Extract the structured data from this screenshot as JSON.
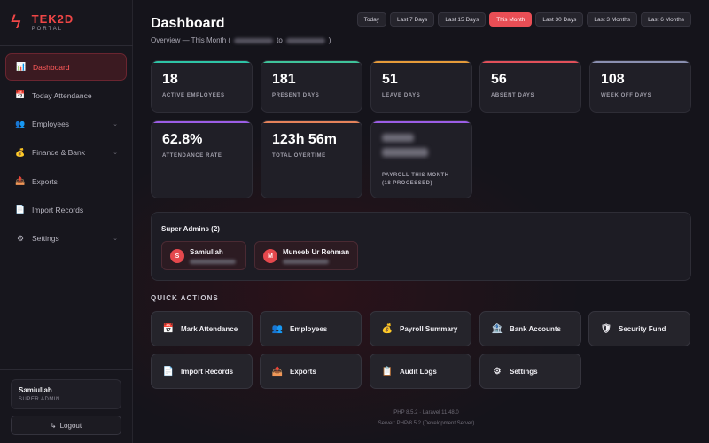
{
  "brand": {
    "name": "TEK2D",
    "sub": "PORTAL"
  },
  "sidebar": {
    "items": [
      {
        "icon": "📊",
        "label": "Dashboard",
        "active": true
      },
      {
        "icon": "📅",
        "label": "Today Attendance"
      },
      {
        "icon": "👥",
        "label": "Employees",
        "expandable": true
      },
      {
        "icon": "💰",
        "label": "Finance & Bank",
        "expandable": true
      },
      {
        "icon": "📤",
        "label": "Exports"
      },
      {
        "icon": "📄",
        "label": "Import Records"
      },
      {
        "icon": "⚙",
        "label": "Settings",
        "expandable": true
      }
    ],
    "chevron": "⌄",
    "user": {
      "name": "Samiullah",
      "role": "SUPER ADMIN"
    },
    "logout": {
      "icon": "↳",
      "label": "Logout"
    }
  },
  "header": {
    "title": "Dashboard",
    "subtitle_prefix": "Overview — This Month (",
    "subtitle_mid": "to",
    "subtitle_suffix": ")",
    "ranges": [
      {
        "label": "Today"
      },
      {
        "label": "Last 7 Days"
      },
      {
        "label": "Last 15 Days"
      },
      {
        "label": "This Month",
        "active": true
      },
      {
        "label": "Last 30 Days"
      },
      {
        "label": "Last 3 Months"
      },
      {
        "label": "Last 6 Months"
      }
    ]
  },
  "stats": [
    {
      "value": "18",
      "label": "ACTIVE EMPLOYEES",
      "accent": "#2ec4a6"
    },
    {
      "value": "181",
      "label": "PRESENT DAYS",
      "accent": "#3fc39a"
    },
    {
      "value": "51",
      "label": "LEAVE DAYS",
      "accent": "#e59b3a"
    },
    {
      "value": "56",
      "label": "ABSENT DAYS",
      "accent": "#e2505a"
    },
    {
      "value": "108",
      "label": "WEEK OFF DAYS",
      "accent": "#8a8fb0"
    },
    {
      "value": "62.8%",
      "label": "ATTENDANCE RATE",
      "accent": "#9b5de5"
    },
    {
      "value": "123h 56m",
      "label": "TOTAL OVERTIME",
      "accent": "#e5835b"
    },
    {
      "label_line1": "PAYROLL THIS MONTH",
      "label_line2": "(18 PROCESSED)",
      "accent": "#9b5de5"
    }
  ],
  "admins": {
    "title": "Super Admins (2)",
    "list": [
      {
        "initial": "S",
        "name": "Samiullah"
      },
      {
        "initial": "M",
        "name": "Muneeb Ur Rehman"
      }
    ]
  },
  "quick_actions": {
    "title": "QUICK ACTIONS",
    "items": [
      {
        "icon": "📅",
        "label": "Mark Attendance"
      },
      {
        "icon": "👥",
        "label": "Employees"
      },
      {
        "icon": "💰",
        "label": "Payroll Summary"
      },
      {
        "icon": "🏦",
        "label": "Bank Accounts"
      },
      {
        "icon": "🛡",
        "label": "Security Fund"
      },
      {
        "icon": "📄",
        "label": "Import Records"
      },
      {
        "icon": "📤",
        "label": "Exports"
      },
      {
        "icon": "📋",
        "label": "Audit Logs"
      },
      {
        "icon": "⚙",
        "label": "Settings"
      }
    ]
  },
  "footer": {
    "line1": "PHP 8.5.2 · Laravel 11.48.0",
    "line2": "Server: PHP/8.5.2 (Development Server)"
  }
}
